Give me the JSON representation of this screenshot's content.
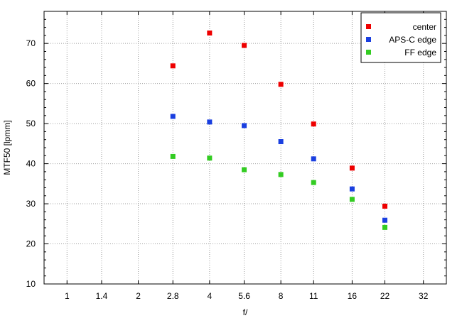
{
  "chart_data": {
    "type": "scatter",
    "xlabel": "f/",
    "ylabel": "MTF50 [lpmm]",
    "x_scale": "log",
    "x_ticks": [
      "1",
      "1.4",
      "2",
      "2.8",
      "4",
      "5.6",
      "8",
      "11",
      "16",
      "22",
      "32"
    ],
    "x_tick_values": [
      1,
      1.4,
      2,
      2.8,
      4,
      5.6,
      8,
      11,
      16,
      22,
      32
    ],
    "xlim": [
      0.8,
      40
    ],
    "ylim": [
      10,
      78
    ],
    "y_ticks": [
      10,
      20,
      30,
      40,
      50,
      60,
      70
    ],
    "grid": true,
    "legend_position": "top-right",
    "series": [
      {
        "name": "center",
        "color": "#ee0000",
        "x": [
          2.8,
          4,
          5.6,
          8,
          11,
          16,
          22
        ],
        "y": [
          64.4,
          72.6,
          69.5,
          59.8,
          49.9,
          38.9,
          29.4
        ]
      },
      {
        "name": "APS-C edge",
        "color": "#1a3fe0",
        "x": [
          2.8,
          4,
          5.6,
          8,
          11,
          16,
          22
        ],
        "y": [
          51.8,
          50.4,
          49.5,
          45.5,
          41.2,
          33.7,
          25.9
        ]
      },
      {
        "name": "FF edge",
        "color": "#33cc22",
        "x": [
          2.8,
          4,
          5.6,
          8,
          11,
          16,
          22
        ],
        "y": [
          41.8,
          41.4,
          38.5,
          37.3,
          35.3,
          31.1,
          24.1
        ]
      }
    ]
  }
}
